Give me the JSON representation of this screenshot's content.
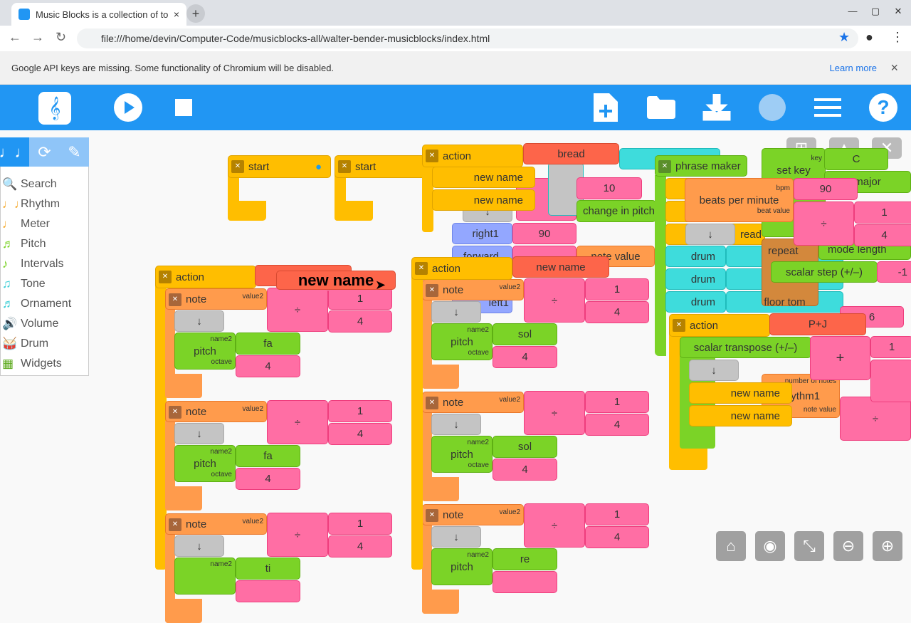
{
  "browser": {
    "tab_title": "Music Blocks is a collection of to",
    "tab_close": "×",
    "new_tab": "+",
    "url": "file:///home/devin/Computer-Code/musicblocks-all/walter-bender-musicblocks/index.html",
    "infobar": "Google API keys are missing. Some functionality of Chromium will be disabled.",
    "learn_more": "Learn more",
    "close": "×"
  },
  "toolbar": {
    "icons": [
      "music-blocks-logo",
      "play",
      "stop",
      "new-file",
      "open-folder",
      "save-download",
      "planet",
      "menu",
      "help"
    ],
    "color": "#2196f3"
  },
  "palette": {
    "tabs": [
      "rhythm-notes",
      "refresh",
      "pen"
    ],
    "items": [
      {
        "label": "Search",
        "icon": "🔍"
      },
      {
        "label": "Rhythm",
        "icon": "♩♩"
      },
      {
        "label": "Meter",
        "icon": "♩"
      },
      {
        "label": "Pitch",
        "icon": "♬"
      },
      {
        "label": "Intervals",
        "icon": "♪"
      },
      {
        "label": "Tone",
        "icon": "♫"
      },
      {
        "label": "Ornament",
        "icon": "♬"
      },
      {
        "label": "Volume",
        "icon": "🔊"
      },
      {
        "label": "Drum",
        "icon": "🥁"
      },
      {
        "label": "Widgets",
        "icon": "▦"
      }
    ]
  },
  "canvas": {
    "start1": "start",
    "start2": "start",
    "stack1": {
      "action": "action",
      "name": "new name",
      "dragged_name": "new name",
      "notes": [
        {
          "label": "note",
          "value_label": "value2",
          "div": "÷",
          "num": "1",
          "den": "4",
          "pitch": "pitch",
          "name_label": "name2",
          "octave_label": "octave",
          "name": "fa",
          "octave": "4",
          "arrow": "↓"
        },
        {
          "label": "note",
          "value_label": "value2",
          "div": "÷",
          "num": "1",
          "den": "4",
          "pitch": "pitch",
          "name_label": "name2",
          "octave_label": "octave",
          "name": "fa",
          "octave": "4",
          "arrow": "↓"
        },
        {
          "label": "note",
          "value_label": "value2",
          "div": "÷",
          "num": "1",
          "den": "4",
          "name_label": "name2",
          "name": "ti",
          "arrow": "↓"
        }
      ]
    },
    "stack2": {
      "action": "action",
      "name": "new name",
      "notes": [
        {
          "label": "note",
          "value_label": "value2",
          "div": "÷",
          "num": "1",
          "den": "4",
          "pitch": "pitch",
          "name_label": "name2",
          "octave_label": "octave",
          "name": "sol",
          "octave": "4",
          "arrow": "↓"
        },
        {
          "label": "note",
          "value_label": "value2",
          "div": "÷",
          "num": "1",
          "den": "4",
          "pitch": "pitch",
          "name_label": "name2",
          "octave_label": "octave",
          "name": "sol",
          "octave": "4",
          "arrow": "↓"
        },
        {
          "label": "note",
          "value_label": "value2",
          "div": "÷",
          "num": "1",
          "den": "4",
          "pitch": "pitch",
          "name_label": "name2",
          "name": "re",
          "arrow": "↓"
        }
      ]
    },
    "stack3": {
      "action": "action",
      "name": "bread",
      "items": [
        "new name",
        "new name"
      ],
      "ten": "10",
      "change": "change in pitch",
      "right": "right1",
      "ninety": "90",
      "forward": "forward",
      "note_value": "note value",
      "left": "left1",
      "arrow": "↓"
    },
    "phrase": {
      "label": "phrase maker",
      "bpm_block": "beats per minute",
      "bpm_label": "bpm",
      "beat_value_label": "beat value",
      "bpm": "90",
      "div": "÷",
      "num": "1",
      "den": "4",
      "read": "read",
      "arrow": "↓",
      "drums": [
        "drum",
        "drum",
        "drum"
      ],
      "drum_value": "floor tom"
    },
    "key": {
      "label": "set key",
      "key_label": "key",
      "key": "C",
      "mode": "major",
      "repeat": "repeat",
      "mode_length": "mode length",
      "scalar_step": "scalar step (+/–)",
      "step": "-1"
    },
    "stack4": {
      "action": "action",
      "name": "P+J",
      "transpose": "scalar transpose (+/–)",
      "plus": "+",
      "one": "1",
      "arrow": "↓",
      "items": [
        "new name",
        "new name"
      ],
      "rhythm": "rhythm1",
      "num_notes_label": "number of notes",
      "note_value_label": "note value",
      "six": "6",
      "div": "÷"
    }
  },
  "controls": [
    "home",
    "show-hide",
    "collapse",
    "zoom-out",
    "zoom-in"
  ]
}
